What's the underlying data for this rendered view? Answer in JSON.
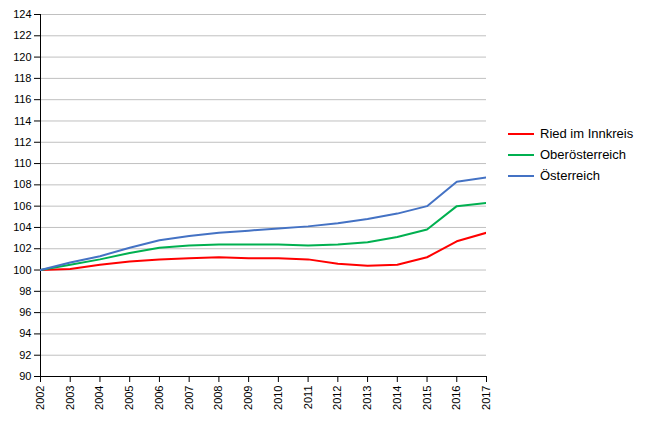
{
  "chart_data": {
    "type": "line",
    "x": [
      2002,
      2003,
      2004,
      2005,
      2006,
      2007,
      2008,
      2009,
      2010,
      2011,
      2012,
      2013,
      2014,
      2015,
      2016,
      2017
    ],
    "series": [
      {
        "name": "Ried im Innkreis",
        "color": "#ff0000",
        "values": [
          100.0,
          100.1,
          100.5,
          100.8,
          101.0,
          101.1,
          101.2,
          101.1,
          101.1,
          101.0,
          100.6,
          100.4,
          100.5,
          101.2,
          102.7,
          103.5
        ]
      },
      {
        "name": "Oberösterreich",
        "color": "#00b050",
        "values": [
          100.0,
          100.5,
          101.0,
          101.6,
          102.1,
          102.3,
          102.4,
          102.4,
          102.4,
          102.3,
          102.4,
          102.6,
          103.1,
          103.8,
          106.0,
          106.3
        ]
      },
      {
        "name": "Österreich",
        "color": "#4472c4",
        "values": [
          100.0,
          100.7,
          101.3,
          102.1,
          102.8,
          103.2,
          103.5,
          103.7,
          103.9,
          104.1,
          104.4,
          104.8,
          105.3,
          106.0,
          108.3,
          108.7
        ]
      }
    ],
    "xlim": [
      2002,
      2017
    ],
    "xticks": [
      2002,
      2003,
      2004,
      2005,
      2006,
      2007,
      2008,
      2009,
      2010,
      2011,
      2012,
      2013,
      2014,
      2015,
      2016,
      2017
    ],
    "ylim": [
      90,
      124
    ],
    "yticks": [
      90,
      92,
      94,
      96,
      98,
      100,
      102,
      104,
      106,
      108,
      110,
      112,
      114,
      116,
      118,
      120,
      122,
      124
    ],
    "grid": true,
    "legend": "right"
  }
}
